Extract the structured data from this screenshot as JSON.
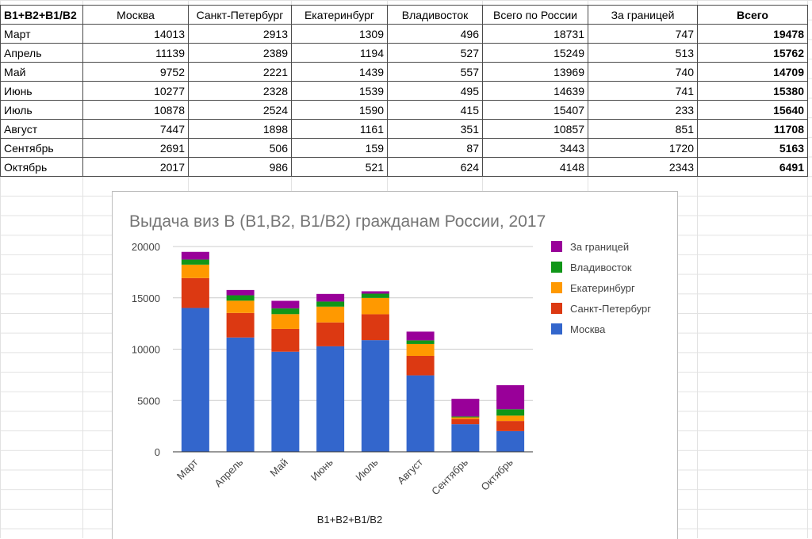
{
  "table": {
    "corner_label": "B1+B2+B1/B2",
    "columns": [
      "Москва",
      "Санкт-Петербург",
      "Екатеринбург",
      "Владивосток",
      "Всего по России",
      "За границей",
      "Всего"
    ],
    "rows": [
      {
        "month": "Март",
        "values": [
          "14013",
          "2913",
          "1309",
          "496",
          "18731",
          "747",
          "19478"
        ]
      },
      {
        "month": "Апрель",
        "values": [
          "11139",
          "2389",
          "1194",
          "527",
          "15249",
          "513",
          "15762"
        ]
      },
      {
        "month": "Май",
        "values": [
          "9752",
          "2221",
          "1439",
          "557",
          "13969",
          "740",
          "14709"
        ]
      },
      {
        "month": "Июнь",
        "values": [
          "10277",
          "2328",
          "1539",
          "495",
          "14639",
          "741",
          "15380"
        ]
      },
      {
        "month": "Июль",
        "values": [
          "10878",
          "2524",
          "1590",
          "415",
          "15407",
          "233",
          "15640"
        ]
      },
      {
        "month": "Август",
        "values": [
          "7447",
          "1898",
          "1161",
          "351",
          "10857",
          "851",
          "11708"
        ]
      },
      {
        "month": "Сентябрь",
        "values": [
          "2691",
          "506",
          "159",
          "87",
          "3443",
          "1720",
          "5163"
        ]
      },
      {
        "month": "Октябрь",
        "values": [
          "2017",
          "986",
          "521",
          "624",
          "4148",
          "2343",
          "6491"
        ]
      }
    ]
  },
  "chart_data": {
    "type": "bar",
    "stacked": true,
    "title": "Выдача виз В (B1,B2, B1/B2) гражданам России, 2017",
    "xlabel": "B1+B2+B1/B2",
    "ylabel": "",
    "ylim": [
      0,
      20000
    ],
    "yticks": [
      "0",
      "5000",
      "10000",
      "15000",
      "20000"
    ],
    "categories": [
      "Март",
      "Апрель",
      "Май",
      "Июнь",
      "Июль",
      "Август",
      "Сентябрь",
      "Октябрь"
    ],
    "series": [
      {
        "name": "Москва",
        "color": "#3366cc",
        "values": [
          14013,
          11139,
          9752,
          10277,
          10878,
          7447,
          2691,
          2017
        ]
      },
      {
        "name": "Санкт-Петербург",
        "color": "#dc3912",
        "values": [
          2913,
          2389,
          2221,
          2328,
          2524,
          1898,
          506,
          986
        ]
      },
      {
        "name": "Екатеринбург",
        "color": "#ff9900",
        "values": [
          1309,
          1194,
          1439,
          1539,
          1590,
          1161,
          159,
          521
        ]
      },
      {
        "name": "Владивосток",
        "color": "#109618",
        "values": [
          496,
          527,
          557,
          495,
          415,
          351,
          87,
          624
        ]
      },
      {
        "name": "За границей",
        "color": "#990099",
        "values": [
          747,
          513,
          740,
          741,
          233,
          851,
          1720,
          2343
        ]
      }
    ],
    "legend_order": [
      "За границей",
      "Владивосток",
      "Екатеринбург",
      "Санкт-Петербург",
      "Москва"
    ],
    "legend_position": "right",
    "grid": true
  }
}
